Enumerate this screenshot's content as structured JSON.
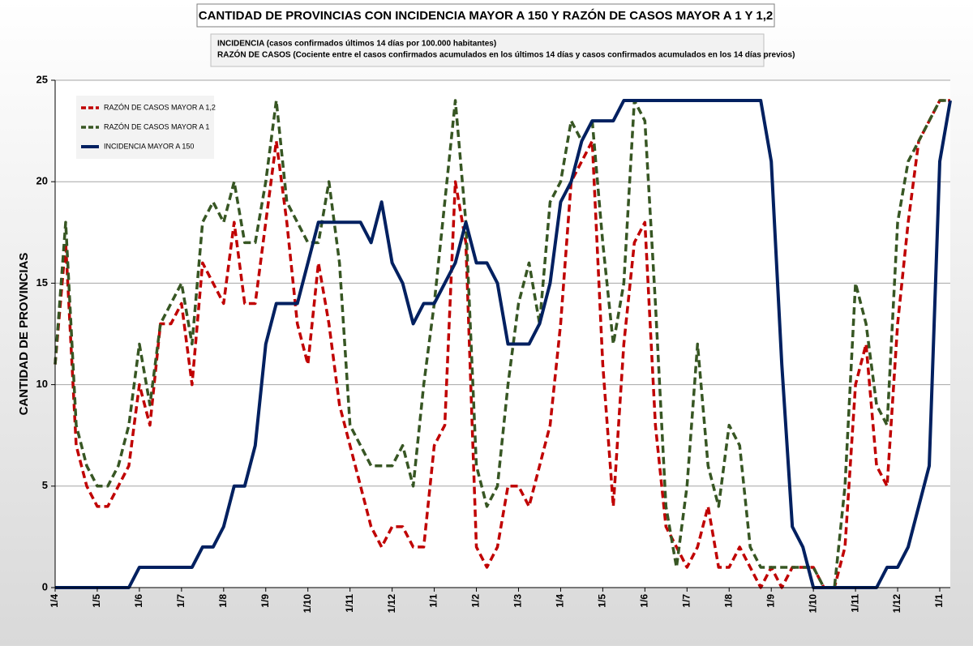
{
  "chart_data": {
    "type": "line",
    "title": "CANTIDAD DE PROVINCIAS CON INCIDENCIA MAYOR A 150 Y RAZÓN DE CASOS MAYOR A 1 Y 1,2",
    "annotations": [
      "INCIDENCIA (casos confirmados últimos 14 días por 100.000  habitantes)",
      "RAZÓN DE CASOS (Cociente entre el casos confirmados acumulados en los últimos 14 días y casos confirmados acumulados en los 14 días previos)"
    ],
    "y_label": "CANTIDAD DE PROVINCIAS",
    "categories": [
      "1/4",
      null,
      null,
      null,
      "1/5",
      null,
      null,
      null,
      "1/6",
      null,
      null,
      null,
      "1/7",
      null,
      null,
      null,
      "1/8",
      null,
      null,
      null,
      "1/9",
      null,
      null,
      null,
      "1/10",
      null,
      null,
      null,
      "1/11",
      null,
      null,
      null,
      "1/12",
      null,
      null,
      null,
      "1/1",
      null,
      null,
      null,
      "1/2",
      null,
      null,
      null,
      "1/3",
      null,
      null,
      null,
      "1/4",
      null,
      null,
      null,
      "1/5",
      null,
      null,
      null,
      "1/6",
      null,
      null,
      null,
      "1/7",
      null,
      null,
      null,
      "1/8",
      null,
      null,
      null,
      "1/9",
      null,
      null,
      null,
      "1/10",
      null,
      null,
      null,
      "1/11",
      null,
      null,
      null,
      "1/12",
      null,
      null,
      null,
      "1/1",
      null
    ],
    "series": [
      {
        "name": "RAZÓN DE CASOS MAYOR A 1,2",
        "color": "#c00000",
        "dashed": true,
        "values": [
          11,
          17,
          7,
          5,
          4,
          4,
          5,
          6,
          10,
          8,
          13,
          13,
          14,
          10,
          16,
          15,
          14,
          18,
          14,
          14,
          18,
          22,
          18,
          13,
          11,
          16,
          13,
          9,
          7,
          5,
          3,
          2,
          3,
          3,
          2,
          2,
          7,
          8,
          20,
          17,
          2,
          1,
          2,
          5,
          5,
          4,
          6,
          8,
          13,
          20,
          21,
          22,
          11,
          4,
          12,
          17,
          18,
          8,
          3,
          2,
          1,
          2,
          4,
          1,
          1,
          2,
          1,
          0,
          1,
          0,
          1,
          1,
          1,
          0,
          0,
          2,
          10,
          12,
          6,
          5,
          13,
          18,
          22,
          23,
          24,
          24
        ]
      },
      {
        "name": "RAZÓN DE CASOS MAYOR A 1",
        "color": "#375623",
        "dashed": true,
        "values": [
          11,
          18,
          8,
          6,
          5,
          5,
          6,
          8,
          12,
          9,
          13,
          14,
          15,
          12,
          18,
          19,
          18,
          20,
          17,
          17,
          20,
          24,
          19,
          18,
          17,
          17,
          20,
          16,
          8,
          7,
          6,
          6,
          6,
          7,
          5,
          10,
          14,
          19,
          24,
          18,
          6,
          4,
          5,
          10,
          14,
          16,
          13,
          19,
          20,
          23,
          22,
          23,
          17,
          12,
          15,
          24,
          23,
          14,
          4,
          1,
          5,
          12,
          6,
          4,
          8,
          7,
          2,
          1,
          1,
          1,
          1,
          1,
          1,
          0,
          0,
          5,
          15,
          13,
          9,
          8,
          18,
          21,
          22,
          23,
          24,
          24
        ]
      },
      {
        "name": "INCIDENCIA MAYOR A 150",
        "color": "#002060",
        "dashed": false,
        "values": [
          0,
          0,
          0,
          0,
          0,
          0,
          0,
          0,
          1,
          1,
          1,
          1,
          1,
          1,
          2,
          2,
          3,
          5,
          5,
          7,
          12,
          14,
          14,
          14,
          16,
          18,
          18,
          18,
          18,
          18,
          17,
          19,
          16,
          15,
          13,
          14,
          14,
          15,
          16,
          18,
          16,
          16,
          15,
          12,
          12,
          12,
          13,
          15,
          19,
          20,
          22,
          23,
          23,
          23,
          24,
          24,
          24,
          24,
          24,
          24,
          24,
          24,
          24,
          24,
          24,
          24,
          24,
          24,
          21,
          11,
          3,
          2,
          0,
          0,
          0,
          0,
          0,
          0,
          0,
          1,
          1,
          2,
          4,
          6,
          21,
          24
        ]
      }
    ],
    "ylim": [
      0,
      25
    ],
    "yticks": [
      0,
      5,
      10,
      15,
      20,
      25
    ],
    "grid": true,
    "legend": "upper left"
  }
}
